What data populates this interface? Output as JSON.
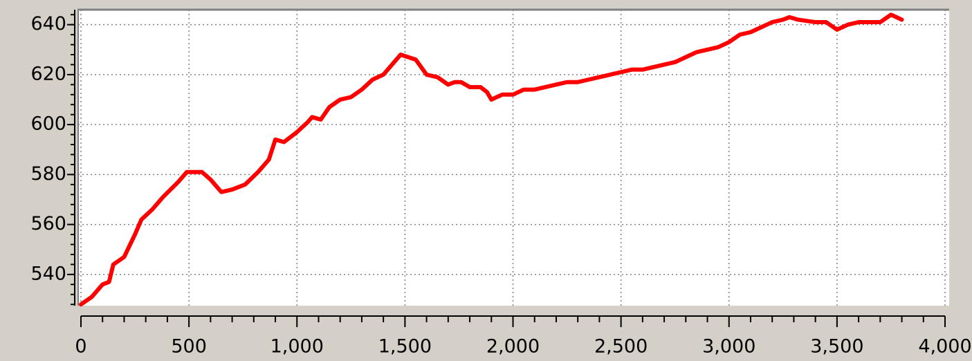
{
  "chart_data": {
    "type": "line",
    "x": [
      0,
      50,
      100,
      130,
      150,
      200,
      250,
      280,
      330,
      380,
      450,
      490,
      560,
      600,
      650,
      700,
      760,
      820,
      870,
      900,
      940,
      1000,
      1050,
      1070,
      1110,
      1150,
      1200,
      1250,
      1300,
      1350,
      1400,
      1450,
      1480,
      1550,
      1600,
      1650,
      1700,
      1730,
      1760,
      1800,
      1850,
      1880,
      1900,
      1950,
      2000,
      2050,
      2100,
      2150,
      2200,
      2250,
      2300,
      2350,
      2400,
      2450,
      2500,
      2550,
      2600,
      2650,
      2700,
      2750,
      2800,
      2850,
      2900,
      2950,
      3000,
      3050,
      3100,
      3150,
      3200,
      3250,
      3280,
      3320,
      3400,
      3450,
      3500,
      3550,
      3600,
      3650,
      3700,
      3750,
      3800
    ],
    "series": [
      {
        "color": "#ff0000",
        "values": [
          528,
          531,
          536,
          537,
          544,
          547,
          556,
          562,
          566,
          571,
          577,
          581,
          581,
          578,
          573,
          574,
          576,
          581,
          586,
          594,
          593,
          597,
          601,
          603,
          602,
          607,
          610,
          611,
          614,
          618,
          620,
          625,
          628,
          626,
          620,
          619,
          616,
          617,
          617,
          615,
          615,
          613,
          610,
          612,
          612,
          614,
          614,
          615,
          616,
          617,
          617,
          618,
          619,
          620,
          621,
          622,
          622,
          623,
          624,
          625,
          627,
          629,
          630,
          631,
          633,
          636,
          637,
          639,
          641,
          642,
          643,
          642,
          641,
          641,
          638,
          640,
          641,
          641,
          641,
          644,
          642
        ]
      }
    ],
    "xlim": [
      0,
      4000
    ],
    "xticks": [
      0,
      500,
      {
        "value": 1000,
        "label": "1,000"
      },
      {
        "value": 1500,
        "label": "1,500"
      },
      {
        "value": 2000,
        "label": "2,000"
      },
      {
        "value": 2500,
        "label": "2,500"
      },
      {
        "value": 3000,
        "label": "3,000"
      },
      {
        "value": 3500,
        "label": "3,500"
      },
      {
        "value": 4000,
        "label": "4,000"
      }
    ],
    "ylim": [
      527.5,
      646
    ],
    "yticks": [
      540,
      560,
      580,
      600,
      620,
      640
    ],
    "grid": true
  }
}
